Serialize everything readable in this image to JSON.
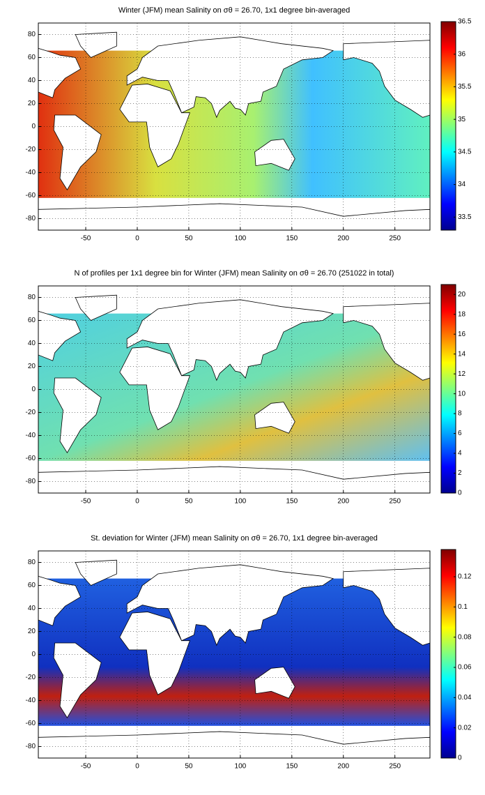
{
  "chart_data": [
    {
      "type": "heatmap",
      "title": "Winter (JFM) mean Salinity on σθ = 26.70, 1x1 degree bin-averaged",
      "xlim": [
        -96,
        284
      ],
      "xticks": [
        -50,
        0,
        50,
        100,
        150,
        200,
        250
      ],
      "ylim": [
        -90,
        90
      ],
      "yticks": [
        -80,
        -60,
        -40,
        -20,
        0,
        20,
        40,
        60,
        80
      ],
      "grid": true,
      "colormap": "jet",
      "colorbar": {
        "lim": [
          33.3,
          36.5
        ],
        "ticks": [
          33.5,
          34,
          34.5,
          35,
          35.5,
          36,
          36.5
        ]
      }
    },
    {
      "type": "heatmap",
      "title": "N of profiles per 1x1 degree bin for Winter (JFM) mean Salinity on σθ = 26.70 (251022 in total)",
      "xlim": [
        -96,
        284
      ],
      "xticks": [
        -50,
        0,
        50,
        100,
        150,
        200,
        250
      ],
      "ylim": [
        -90,
        90
      ],
      "yticks": [
        -80,
        -60,
        -40,
        -20,
        0,
        20,
        40,
        60,
        80
      ],
      "grid": true,
      "colormap": "jet",
      "colorbar": {
        "lim": [
          0,
          21
        ],
        "ticks": [
          0,
          2,
          4,
          6,
          8,
          10,
          12,
          14,
          16,
          18,
          20
        ]
      }
    },
    {
      "type": "heatmap",
      "title": "St. deviation for Winter (JFM) mean Salinity on σθ = 26.70, 1x1 degree bin-averaged",
      "xlim": [
        -96,
        284
      ],
      "xticks": [
        -50,
        0,
        50,
        100,
        150,
        200,
        250
      ],
      "ylim": [
        -90,
        90
      ],
      "yticks": [
        -80,
        -60,
        -40,
        -20,
        0,
        20,
        40,
        60,
        80
      ],
      "grid": true,
      "colormap": "jet",
      "colorbar": {
        "lim": [
          0,
          0.138
        ],
        "ticks": [
          0,
          0.02,
          0.04,
          0.06,
          0.08,
          0.1,
          0.12
        ]
      }
    }
  ]
}
